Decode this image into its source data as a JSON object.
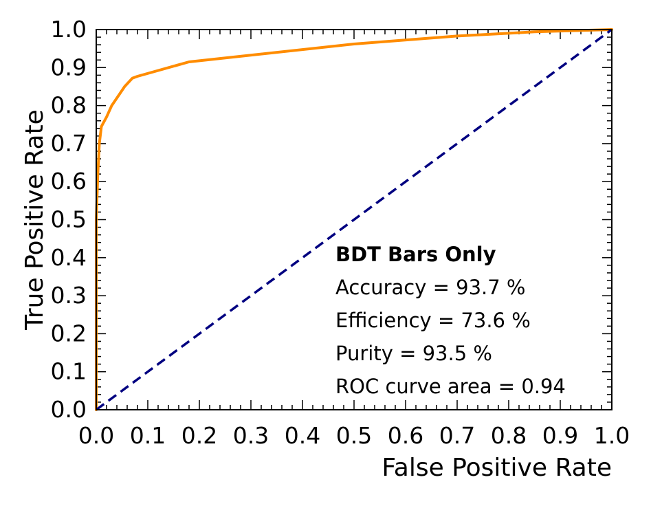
{
  "chart_data": {
    "type": "line",
    "title": "",
    "xlabel": "False Positive Rate",
    "ylabel": "True Positive Rate",
    "xlim": [
      0.0,
      1.0
    ],
    "ylim": [
      0.0,
      1.0
    ],
    "x_ticks": [
      "0.0",
      "0.1",
      "0.2",
      "0.3",
      "0.4",
      "0.5",
      "0.6",
      "0.7",
      "0.8",
      "0.9",
      "1.0"
    ],
    "y_ticks": [
      "0.0",
      "0.1",
      "0.2",
      "0.3",
      "0.4",
      "0.5",
      "0.6",
      "0.7",
      "0.8",
      "0.9",
      "1.0"
    ],
    "grid": false,
    "series": [
      {
        "style": "solid",
        "color": "#ff8c00",
        "x": [
          0.0,
          0.0,
          0.003,
          0.006,
          0.01,
          0.02,
          0.03,
          0.045,
          0.055,
          0.07,
          0.08,
          0.18,
          0.5,
          0.7,
          0.85,
          1.0
        ],
        "y": [
          0.0,
          0.5,
          0.62,
          0.7,
          0.745,
          0.77,
          0.8,
          0.83,
          0.85,
          0.872,
          0.877,
          0.915,
          0.962,
          0.983,
          0.994,
          1.0
        ]
      },
      {
        "style": "dashed",
        "color": "#000080",
        "x": [
          0.0,
          1.0
        ],
        "y": [
          0.0,
          1.0
        ]
      }
    ],
    "annotations": {
      "title": "BDT Bars Only",
      "lines": [
        "Accuracy = 93.7 %",
        "Efficiency = 73.6 %",
        "Purity = 93.5 %",
        "ROC curve area = 0.94"
      ]
    }
  }
}
